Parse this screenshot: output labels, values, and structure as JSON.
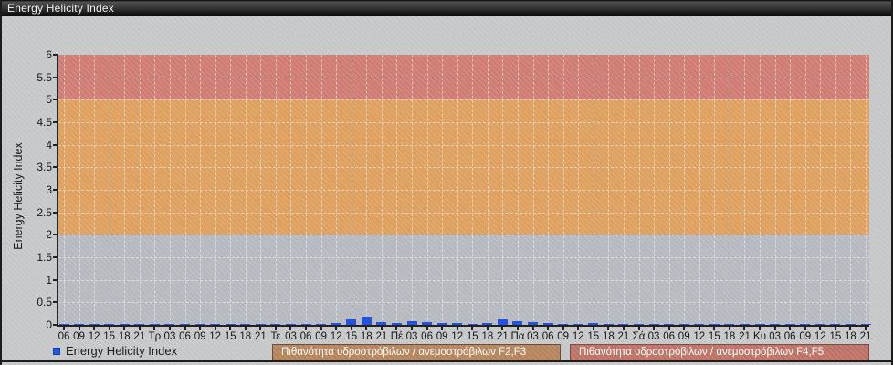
{
  "window": {
    "title": "Energy Helicity Index"
  },
  "chart_data": {
    "type": "bar",
    "title": "Energy Helicity Index",
    "xlabel": "",
    "ylabel": "Energy Helicity Index",
    "ylim": [
      0,
      6
    ],
    "ytick_step": 0.5,
    "grid": "dashed-white",
    "bar_color": "#2353da",
    "plot_background": "#b6b9bf",
    "x_labels": [
      "06",
      "09",
      "12",
      "15",
      "18",
      "21",
      "Τρ",
      "03",
      "06",
      "09",
      "12",
      "15",
      "18",
      "21",
      "Τε",
      "03",
      "06",
      "09",
      "12",
      "15",
      "18",
      "21",
      "Πέ",
      "03",
      "06",
      "09",
      "12",
      "15",
      "18",
      "21",
      "Πα",
      "03",
      "06",
      "09",
      "12",
      "15",
      "18",
      "21",
      "Σά",
      "03",
      "06",
      "09",
      "12",
      "15",
      "18",
      "21",
      "Κυ",
      "03",
      "06",
      "09",
      "12",
      "15",
      "18",
      "21"
    ],
    "series": [
      {
        "name": "Energy Helicity Index",
        "values": [
          0.02,
          0.02,
          0.02,
          0.02,
          0.02,
          0.02,
          0.02,
          0.02,
          0.02,
          0.02,
          0.02,
          0.02,
          0.02,
          0.02,
          0.02,
          0.02,
          0.03,
          0.03,
          0.05,
          0.12,
          0.19,
          0.06,
          0.04,
          0.09,
          0.07,
          0.04,
          0.04,
          0.03,
          0.05,
          0.12,
          0.09,
          0.07,
          0.04,
          0.03,
          0.02,
          0.04,
          0.02,
          0.02,
          0.02,
          0.02,
          0.02,
          0.02,
          0.02,
          0.02,
          0.02,
          0.02,
          0.02,
          0.02,
          0.02,
          0.02,
          0.02,
          0.02,
          0.02,
          0.02
        ]
      }
    ],
    "bands": [
      {
        "from": 0,
        "to": 2,
        "color": "#b6b9bf"
      },
      {
        "from": 2,
        "to": 5,
        "color": "#dda05f"
      },
      {
        "from": 5,
        "to": 6,
        "color": "#cf7d73"
      }
    ],
    "legend_position": "bottom"
  },
  "legend": {
    "series_label": "Energy Helicity Index",
    "band_f2f3_label": "Πιθανότητα υδροστρόβιλων / ανεμοστρόβιλων F2,F3",
    "band_f4f5_label": "Πιθανότητα υδροστρόβιλων / ανεμοστρόβιλων F4,F5",
    "band_f2f3_color": "#b5845c",
    "band_f4f5_color": "#bd7265",
    "series_swatch_color": "#2b57de"
  }
}
